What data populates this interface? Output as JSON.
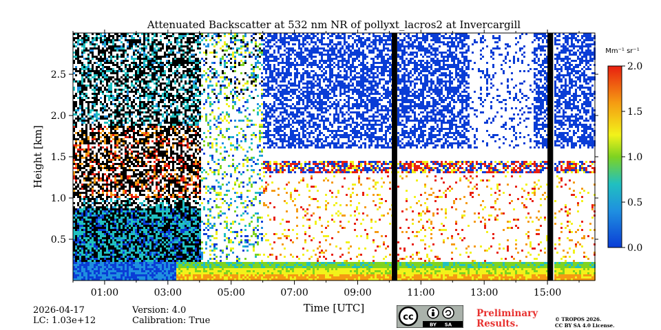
{
  "chart_data": {
    "type": "heatmap",
    "title": "Attenuated Backscatter at 532 nm NR of pollyxt_lacros2 at Invercargill",
    "xlabel": "Time [UTC]",
    "ylabel": "Height [km]",
    "x_ticks": [
      "01:00",
      "03:00",
      "05:00",
      "07:00",
      "09:00",
      "11:00",
      "13:00",
      "15:00"
    ],
    "x_tick_hours": [
      1,
      3,
      5,
      7,
      9,
      11,
      13,
      15
    ],
    "xlim_hours": [
      0,
      16.5
    ],
    "y_ticks": [
      "0.5",
      "1.0",
      "1.5",
      "2.0",
      "2.5"
    ],
    "y_tick_values": [
      0.5,
      1.0,
      1.5,
      2.0,
      2.5
    ],
    "ylim_km": [
      0,
      3.0
    ],
    "colorbar": {
      "unit": "Mm⁻¹ sr⁻¹",
      "ticks": [
        "0.0",
        "0.5",
        "1.0",
        "1.5",
        "2.0"
      ],
      "tick_values": [
        0.0,
        0.5,
        1.0,
        1.5,
        2.0
      ],
      "range": [
        0.0,
        2.0
      ],
      "colormap": "jet"
    },
    "data_gaps_hours": [
      [
        10.08,
        10.25
      ],
      [
        15.0,
        15.18
      ]
    ],
    "cloud_layer_km": [
      1.3,
      1.45
    ],
    "aerosol_layer_km": [
      0.0,
      0.25
    ]
  },
  "footer": {
    "date": "2026-04-17",
    "lc": "LC: 1.03e+12",
    "version": "Version: 4.0",
    "calibration": "Calibration: True",
    "preliminary": "Preliminary",
    "results": "Results.",
    "copyright_line1": "© TROPOS 2026.",
    "copyright_line2": "CC BY SA 4.0 License.",
    "cc_label": "cc",
    "by_label": "BY",
    "sa_label": "SA"
  }
}
